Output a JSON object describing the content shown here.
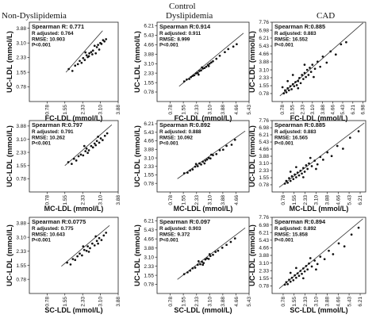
{
  "figure": {
    "header": "Control",
    "column_titles": [
      "Non-Dyslipidemia",
      "Dyslipidemia",
      "CAD"
    ]
  },
  "chart_data": [
    {
      "type": "scatter",
      "ylabel": "UC-LDL (mmol/L)",
      "xlabel": "FC-LDL (mmol/L)",
      "xticks": [
        "0.78",
        "1.55",
        "2.33",
        "3.10",
        "3.88"
      ],
      "yticks": [
        "0.78",
        "1.55",
        "2.33",
        "3.10",
        "3.88"
      ],
      "xlim": [
        0,
        3.88
      ],
      "ylim": [
        0,
        4.2
      ],
      "stats": [
        "Spearman R: 0.771",
        "R adjusted: 0.764",
        "RMSE: 10.903",
        "P<0.001"
      ],
      "fit": [
        [
          1.6,
          1.55
        ],
        [
          3.2,
          3.75
        ]
      ],
      "points": [
        [
          1.72,
          1.72
        ],
        [
          1.88,
          1.62
        ],
        [
          2.0,
          1.9
        ],
        [
          2.12,
          1.98
        ],
        [
          2.2,
          2.15
        ],
        [
          2.28,
          2.05
        ],
        [
          2.35,
          2.3
        ],
        [
          2.42,
          2.2
        ],
        [
          2.5,
          2.45
        ],
        [
          2.55,
          2.35
        ],
        [
          2.62,
          2.55
        ],
        [
          2.7,
          2.62
        ],
        [
          2.78,
          2.7
        ],
        [
          2.85,
          2.95
        ],
        [
          2.9,
          2.55
        ],
        [
          2.95,
          2.88
        ],
        [
          3.0,
          3.0
        ],
        [
          3.05,
          2.75
        ],
        [
          3.1,
          3.1
        ],
        [
          3.15,
          3.05
        ],
        [
          3.22,
          3.25
        ],
        [
          3.28,
          3.18
        ],
        [
          3.35,
          3.3
        ],
        [
          2.45,
          2.6
        ],
        [
          2.6,
          2.4
        ],
        [
          2.75,
          2.5
        ]
      ]
    },
    {
      "type": "scatter",
      "ylabel": "UC-LDL (mmol/L)",
      "xlabel": "FC-LDL (mmol/L)",
      "xticks": [
        "0.78",
        "1.55",
        "2.33",
        "3.10",
        "3.88",
        "4.66",
        "5.43"
      ],
      "yticks": [
        "0.78",
        "1.55",
        "2.33",
        "3.10",
        "3.88",
        "4.66",
        "5.43",
        "6.21"
      ],
      "xlim": [
        0,
        5.43
      ],
      "ylim": [
        0,
        6.5
      ],
      "stats": [
        "Spearman R:0.914",
        "R adjusted: 0.911",
        "RMSE: 8.999",
        "P<0.001"
      ],
      "fit": [
        [
          1.3,
          1.25
        ],
        [
          5.1,
          5.6
        ]
      ],
      "points": [
        [
          1.6,
          1.65
        ],
        [
          1.75,
          1.8
        ],
        [
          1.9,
          1.85
        ],
        [
          2.0,
          2.0
        ],
        [
          2.1,
          2.1
        ],
        [
          2.2,
          2.15
        ],
        [
          2.3,
          2.3
        ],
        [
          2.4,
          2.35
        ],
        [
          2.5,
          2.5
        ],
        [
          2.6,
          2.55
        ],
        [
          2.7,
          2.7
        ],
        [
          2.8,
          2.75
        ],
        [
          2.9,
          2.85
        ],
        [
          3.0,
          3.0
        ],
        [
          3.1,
          3.1
        ],
        [
          3.2,
          3.2
        ],
        [
          3.3,
          3.3
        ],
        [
          3.5,
          3.5
        ],
        [
          3.7,
          3.75
        ],
        [
          4.0,
          4.05
        ],
        [
          4.2,
          4.3
        ],
        [
          4.5,
          4.5
        ],
        [
          4.7,
          4.7
        ],
        [
          2.45,
          2.2
        ],
        [
          2.65,
          2.8
        ],
        [
          3.05,
          2.9
        ]
      ]
    },
    {
      "type": "scatter",
      "ylabel": "UC-LDL (mmol/L)",
      "xlabel": "FC-LDL (mmol/L)",
      "xticks": [
        "0.78",
        "1.55",
        "2.33",
        "3.10",
        "3.88",
        "4.66",
        "5.43",
        "6.21",
        "6.98"
      ],
      "yticks": [
        "0.78",
        "1.55",
        "2.33",
        "3.10",
        "3.88",
        "4.66",
        "5.43",
        "6.21",
        "6.98",
        "7.76"
      ],
      "xlim": [
        0,
        7.2
      ],
      "ylim": [
        0,
        7.76
      ],
      "stats": [
        "Spearman R:0.885",
        "R adjusted: 0.883",
        "RMSE: 16.552",
        "P<0.001"
      ],
      "fit": [
        [
          0.6,
          0.55
        ],
        [
          7.0,
          7.7
        ]
      ],
      "points": [
        [
          0.9,
          0.8
        ],
        [
          1.0,
          1.1
        ],
        [
          1.1,
          0.9
        ],
        [
          1.2,
          1.3
        ],
        [
          1.3,
          1.1
        ],
        [
          1.4,
          1.5
        ],
        [
          1.5,
          1.2
        ],
        [
          1.6,
          1.7
        ],
        [
          1.7,
          1.5
        ],
        [
          1.8,
          1.9
        ],
        [
          1.9,
          1.6
        ],
        [
          2.0,
          2.0
        ],
        [
          2.1,
          2.3
        ],
        [
          2.2,
          1.8
        ],
        [
          2.3,
          2.6
        ],
        [
          2.4,
          2.2
        ],
        [
          2.5,
          2.8
        ],
        [
          2.6,
          2.4
        ],
        [
          2.7,
          3.1
        ],
        [
          2.8,
          2.6
        ],
        [
          2.9,
          3.3
        ],
        [
          3.0,
          2.9
        ],
        [
          3.1,
          3.6
        ],
        [
          3.3,
          3.2
        ],
        [
          3.5,
          3.9
        ],
        [
          3.7,
          3.4
        ],
        [
          3.9,
          4.4
        ],
        [
          4.2,
          3.8
        ],
        [
          4.5,
          4.9
        ],
        [
          4.9,
          4.6
        ],
        [
          5.3,
          5.6
        ],
        [
          5.7,
          5.8
        ],
        [
          1.2,
          2.0
        ],
        [
          1.6,
          2.6
        ],
        [
          2.0,
          1.3
        ],
        [
          2.5,
          3.6
        ],
        [
          3.2,
          2.4
        ],
        [
          0.8,
          1.4
        ]
      ]
    },
    {
      "type": "scatter",
      "ylabel": "UC-LDL (mmol/L)",
      "xlabel": "MC-LDL (mmol/L)",
      "xticks": [
        "0.78",
        "1.55",
        "2.33",
        "3.10",
        "3.88"
      ],
      "yticks": [
        "0.78",
        "1.55",
        "2.33",
        "3.10",
        "3.88"
      ],
      "xlim": [
        0,
        3.88
      ],
      "ylim": [
        0,
        4.2
      ],
      "stats": [
        "Spearman R:0.797",
        "R adjusted: 0.791",
        "RMSE: 10.262",
        "P<0.001"
      ],
      "fit": [
        [
          1.55,
          1.55
        ],
        [
          3.6,
          3.95
        ]
      ],
      "points": [
        [
          1.7,
          1.75
        ],
        [
          1.85,
          1.65
        ],
        [
          1.95,
          1.95
        ],
        [
          2.05,
          1.85
        ],
        [
          2.15,
          2.1
        ],
        [
          2.25,
          2.2
        ],
        [
          2.35,
          2.15
        ],
        [
          2.45,
          2.4
        ],
        [
          2.5,
          2.55
        ],
        [
          2.6,
          2.45
        ],
        [
          2.7,
          2.7
        ],
        [
          2.78,
          2.62
        ],
        [
          2.85,
          2.85
        ],
        [
          2.95,
          3.0
        ],
        [
          3.05,
          2.9
        ],
        [
          3.12,
          3.15
        ],
        [
          3.2,
          3.05
        ],
        [
          3.3,
          3.3
        ],
        [
          3.4,
          3.45
        ],
        [
          2.4,
          2.7
        ],
        [
          2.55,
          2.3
        ],
        [
          2.9,
          2.75
        ],
        [
          3.0,
          3.25
        ]
      ]
    },
    {
      "type": "scatter",
      "ylabel": "UC-LDL (mmol/L)",
      "xlabel": "MC-LDL (mmol/L)",
      "xticks": [
        "0.78",
        "1.55",
        "2.33",
        "3.10",
        "3.88",
        "4.66"
      ],
      "yticks": [
        "0.78",
        "1.55",
        "2.33",
        "3.10",
        "3.88",
        "4.66",
        "5.43",
        "6.21"
      ],
      "xlim": [
        0,
        5.43
      ],
      "ylim": [
        0,
        6.5
      ],
      "stats": [
        "Spearman R:0.892",
        "R adjusted: 0.888",
        "RMSE: 10.092",
        "P<0.001"
      ],
      "fit": [
        [
          1.2,
          1.2
        ],
        [
          5.2,
          5.55
        ]
      ],
      "points": [
        [
          1.6,
          1.7
        ],
        [
          1.8,
          1.75
        ],
        [
          1.95,
          1.95
        ],
        [
          2.1,
          2.05
        ],
        [
          2.25,
          2.3
        ],
        [
          2.4,
          2.35
        ],
        [
          2.5,
          2.6
        ],
        [
          2.6,
          2.5
        ],
        [
          2.7,
          2.75
        ],
        [
          2.85,
          2.85
        ],
        [
          2.95,
          2.95
        ],
        [
          3.05,
          3.1
        ],
        [
          3.15,
          3.05
        ],
        [
          3.3,
          3.35
        ],
        [
          3.5,
          3.45
        ],
        [
          3.7,
          3.8
        ],
        [
          3.9,
          3.85
        ],
        [
          4.1,
          4.2
        ],
        [
          4.4,
          4.3
        ],
        [
          4.6,
          4.75
        ],
        [
          2.3,
          2.55
        ],
        [
          2.8,
          2.6
        ],
        [
          3.2,
          3.4
        ]
      ]
    },
    {
      "type": "scatter",
      "ylabel": "UC-LDL (mmol/L)",
      "xlabel": "MC-LDL (mmol/L)",
      "xticks": [
        "0.78",
        "1.55",
        "2.33",
        "3.10",
        "3.88",
        "4.66",
        "5.43",
        "6.21"
      ],
      "yticks": [
        "0.78",
        "1.55",
        "2.33",
        "3.10",
        "3.88",
        "4.66",
        "5.43",
        "6.21",
        "6.98",
        "7.76"
      ],
      "xlim": [
        0,
        6.6
      ],
      "ylim": [
        0,
        7.76
      ],
      "stats": [
        "Spearman R:0.885",
        "R adjusted: 0.883",
        "RMSE: 16.565",
        "P<0.001"
      ],
      "fit": [
        [
          0.5,
          0.5
        ],
        [
          6.5,
          7.5
        ]
      ],
      "points": [
        [
          0.9,
          0.9
        ],
        [
          1.0,
          1.2
        ],
        [
          1.1,
          1.0
        ],
        [
          1.2,
          1.5
        ],
        [
          1.3,
          1.2
        ],
        [
          1.4,
          1.7
        ],
        [
          1.5,
          1.4
        ],
        [
          1.6,
          1.9
        ],
        [
          1.7,
          1.6
        ],
        [
          1.8,
          2.1
        ],
        [
          1.9,
          1.8
        ],
        [
          2.0,
          2.3
        ],
        [
          2.1,
          2.0
        ],
        [
          2.2,
          2.6
        ],
        [
          2.3,
          2.2
        ],
        [
          2.4,
          2.9
        ],
        [
          2.5,
          2.5
        ],
        [
          2.6,
          3.1
        ],
        [
          2.8,
          2.8
        ],
        [
          3.0,
          3.4
        ],
        [
          3.2,
          3.0
        ],
        [
          3.4,
          3.8
        ],
        [
          3.6,
          3.5
        ],
        [
          3.9,
          4.3
        ],
        [
          4.2,
          3.9
        ],
        [
          4.6,
          5.0
        ],
        [
          5.0,
          4.7
        ],
        [
          5.5,
          5.9
        ],
        [
          6.1,
          6.6
        ],
        [
          1.3,
          2.2
        ],
        [
          1.7,
          2.7
        ],
        [
          2.2,
          1.6
        ],
        [
          2.7,
          3.7
        ],
        [
          3.1,
          2.5
        ]
      ]
    },
    {
      "type": "scatter",
      "ylabel": "UC-LDL (mmol/L)",
      "xlabel": "SC-LDL (mmol/L)",
      "xticks": [
        "0.78",
        "1.55",
        "2.33",
        "3.10",
        "3.88"
      ],
      "yticks": [
        "0.78",
        "1.55",
        "2.33",
        "3.10",
        "3.88"
      ],
      "xlim": [
        0,
        3.88
      ],
      "ylim": [
        0,
        4.2
      ],
      "stats": [
        "Spearman R:0.0775",
        "R adjusted: 0.775",
        "RMSE: 10.643",
        "P<0.001"
      ],
      "fit": [
        [
          1.4,
          1.5
        ],
        [
          3.5,
          3.75
        ]
      ],
      "points": [
        [
          1.65,
          1.7
        ],
        [
          1.8,
          1.6
        ],
        [
          1.9,
          1.9
        ],
        [
          2.0,
          1.85
        ],
        [
          2.1,
          2.05
        ],
        [
          2.2,
          2.2
        ],
        [
          2.3,
          2.1
        ],
        [
          2.4,
          2.4
        ],
        [
          2.5,
          2.35
        ],
        [
          2.55,
          2.6
        ],
        [
          2.65,
          2.5
        ],
        [
          2.75,
          2.75
        ],
        [
          2.85,
          2.65
        ],
        [
          2.95,
          2.9
        ],
        [
          3.05,
          3.05
        ],
        [
          3.15,
          2.95
        ],
        [
          3.25,
          3.2
        ],
        [
          3.35,
          3.35
        ],
        [
          2.35,
          2.6
        ],
        [
          2.6,
          2.3
        ],
        [
          2.9,
          3.15
        ],
        [
          3.0,
          2.75
        ]
      ]
    },
    {
      "type": "scatter",
      "ylabel": "UC-LDL (mmol/L)",
      "xlabel": "SC-LDL (mmol/L)",
      "xticks": [
        "0.78",
        "1.55",
        "2.33",
        "3.10",
        "3.88",
        "4.66",
        "5.43"
      ],
      "yticks": [
        "0.78",
        "1.55",
        "2.33",
        "3.10",
        "3.88",
        "4.66",
        "5.43",
        "6.21"
      ],
      "xlim": [
        0,
        5.43
      ],
      "ylim": [
        0,
        6.5
      ],
      "stats": [
        "Spearman R:0.097",
        "R adjusted: 0.903",
        "RMSE: 9.372",
        "P<0.001"
      ],
      "fit": [
        [
          1.2,
          1.2
        ],
        [
          5.2,
          5.6
        ]
      ],
      "points": [
        [
          1.6,
          1.65
        ],
        [
          1.8,
          1.8
        ],
        [
          1.95,
          1.95
        ],
        [
          2.1,
          2.15
        ],
        [
          2.25,
          2.2
        ],
        [
          2.4,
          2.45
        ],
        [
          2.55,
          2.5
        ],
        [
          2.65,
          2.7
        ],
        [
          2.75,
          2.6
        ],
        [
          2.85,
          2.9
        ],
        [
          2.95,
          3.0
        ],
        [
          3.05,
          2.95
        ],
        [
          3.15,
          3.2
        ],
        [
          3.3,
          3.3
        ],
        [
          3.45,
          3.55
        ],
        [
          3.6,
          3.65
        ],
        [
          3.85,
          3.9
        ],
        [
          4.1,
          4.15
        ],
        [
          4.35,
          4.4
        ],
        [
          4.6,
          4.7
        ],
        [
          2.45,
          2.75
        ],
        [
          2.7,
          2.45
        ],
        [
          3.1,
          3.35
        ]
      ]
    },
    {
      "type": "scatter",
      "ylabel": "UC-LDL (mmol/L)",
      "xlabel": "SC-LDL (mmol/L)",
      "xticks": [
        "0.78",
        "1.55",
        "2.33",
        "3.10",
        "3.88",
        "4.66",
        "5.43",
        "6.21"
      ],
      "yticks": [
        "0.78",
        "1.55",
        "2.33",
        "3.10",
        "3.88",
        "4.66",
        "5.43",
        "6.21",
        "6.98",
        "7.76"
      ],
      "xlim": [
        0,
        6.6
      ],
      "ylim": [
        0,
        7.76
      ],
      "stats": [
        "Spearman R:0.894",
        "R adjusted: 0.892",
        "RMSE: 15.858",
        "P<0.001"
      ],
      "fit": [
        [
          0.5,
          0.5
        ],
        [
          6.4,
          7.6
        ]
      ],
      "points": [
        [
          0.9,
          0.9
        ],
        [
          1.0,
          1.15
        ],
        [
          1.1,
          0.95
        ],
        [
          1.2,
          1.4
        ],
        [
          1.3,
          1.2
        ],
        [
          1.4,
          1.6
        ],
        [
          1.5,
          1.35
        ],
        [
          1.6,
          1.85
        ],
        [
          1.7,
          1.6
        ],
        [
          1.8,
          2.05
        ],
        [
          1.9,
          1.8
        ],
        [
          2.0,
          2.3
        ],
        [
          2.1,
          2.0
        ],
        [
          2.2,
          2.55
        ],
        [
          2.3,
          2.25
        ],
        [
          2.4,
          2.8
        ],
        [
          2.5,
          2.45
        ],
        [
          2.6,
          3.05
        ],
        [
          2.8,
          2.75
        ],
        [
          3.0,
          3.35
        ],
        [
          3.2,
          3.0
        ],
        [
          3.4,
          3.75
        ],
        [
          3.7,
          3.5
        ],
        [
          4.0,
          4.35
        ],
        [
          4.3,
          4.0
        ],
        [
          4.7,
          5.1
        ],
        [
          5.1,
          4.8
        ],
        [
          5.6,
          6.0
        ],
        [
          6.1,
          6.7
        ],
        [
          1.3,
          2.1
        ],
        [
          1.7,
          2.6
        ],
        [
          2.2,
          1.55
        ],
        [
          2.7,
          3.6
        ],
        [
          3.1,
          2.45
        ]
      ]
    }
  ]
}
